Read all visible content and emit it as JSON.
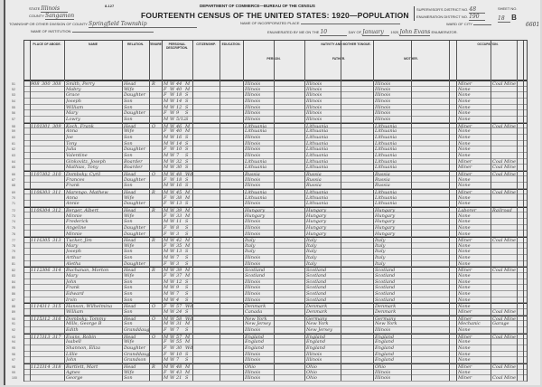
{
  "header": {
    "form_no": "8-127",
    "department": "DEPARTMENT OF COMMERCE—BUREAU OF THE CENSUS",
    "title": "FOURTEENTH CENSUS OF THE UNITED STATES: 1920—POPULATION",
    "state_label": "STATE",
    "state": "Illinois",
    "county_label": "COUNTY",
    "county": "Sangamon",
    "township_label": "TOWNSHIP OR OTHER DIVISION OF COUNTY",
    "township": "Springfield Township",
    "place_label": "NAME OF INCORPORATED PLACE",
    "place": "",
    "institution_label": "NAME OF INSTITUTION",
    "institution": "",
    "enumerated_label": "ENUMERATED BY ME ON THE",
    "day": "10",
    "day_label": "DAY OF",
    "month": "January",
    "year": "1920",
    "enumerator": "John Evans",
    "enumerator_label": "ENUMERATOR.",
    "supervisor_label": "SUPERVISOR'S DISTRICT NO.",
    "supervisor": "48",
    "ed_label": "ENUMERATION DISTRICT NO.",
    "ed": "190",
    "ward_label": "WARD OF CITY",
    "ward": "",
    "sheet_label": "SHEET NO.",
    "sheet": "18",
    "sheet_side": "B",
    "margin_note": "6601"
  },
  "columns": {
    "abode": "PLACE OF ABODE.",
    "name": "NAME",
    "relation": "RELATION.",
    "tenure": "TENURE.",
    "personal": "PERSONAL DESCRIPTION.",
    "citizenship": "CITIZENSHIP.",
    "education": "EDUCATION.",
    "nativity": "NATIVITY AND MOTHER TONGUE.",
    "person": "PERSON.",
    "father": "FATHER.",
    "mother": "MOTHER.",
    "occupation": "OCCUPATION."
  },
  "rows": [
    {
      "n": "51",
      "house": "908",
      "dw": "300",
      "fam": "308",
      "name": "Smith, Perry",
      "rel": "Head",
      "tenure": "R",
      "sex": "M",
      "race": "W",
      "age": "44",
      "ms": "M",
      "pob": "Illinois",
      "fpob": "Illinois",
      "mpob": "Illinois",
      "occ": "Miner",
      "ind": "Coal Mine",
      "new": true
    },
    {
      "n": "52",
      "name": "Mabry",
      "rel": "Wife",
      "sex": "F",
      "race": "W",
      "age": "40",
      "ms": "M",
      "pob": "Illinois",
      "fpob": "Illinois",
      "mpob": "Illinois",
      "occ": "None"
    },
    {
      "n": "53",
      "name": "Grace",
      "rel": "Daughter",
      "sex": "F",
      "race": "W",
      "age": "18",
      "ms": "S",
      "pob": "Illinois",
      "fpob": "Illinois",
      "mpob": "Illinois",
      "occ": "None"
    },
    {
      "n": "54",
      "name": "Joseph",
      "rel": "Son",
      "sex": "M",
      "race": "W",
      "age": "14",
      "ms": "S",
      "pob": "Illinois",
      "fpob": "Illinois",
      "mpob": "Illinois",
      "occ": "None"
    },
    {
      "n": "55",
      "name": "William",
      "rel": "Son",
      "sex": "M",
      "race": "W",
      "age": "12",
      "ms": "S",
      "pob": "Illinois",
      "fpob": "Illinois",
      "mpob": "Illinois",
      "occ": "None"
    },
    {
      "n": "56",
      "name": "Mary",
      "rel": "Daughter",
      "sex": "F",
      "race": "W",
      "age": "9",
      "ms": "S",
      "pob": "Illinois",
      "fpob": "Illinois",
      "mpob": "Illinois",
      "occ": "None"
    },
    {
      "n": "57",
      "name": "Lowry",
      "rel": "Son",
      "sex": "M",
      "race": "W",
      "age": "5/12",
      "ms": "S",
      "pob": "Illinois",
      "fpob": "Illinois",
      "mpob": "Illinois",
      "occ": "None"
    },
    {
      "n": "58",
      "house": "1101",
      "dw": "301",
      "fam": "309",
      "name": "Koch, Frank",
      "rel": "Head",
      "tenure": "O",
      "sex": "M",
      "race": "W",
      "age": "46",
      "ms": "M",
      "pob": "Lithuania",
      "fpob": "Lithuania",
      "mpob": "Lithuania",
      "occ": "Miner",
      "ind": "Coal Mine",
      "new": true
    },
    {
      "n": "59",
      "name": "Anna",
      "rel": "Wife",
      "sex": "F",
      "race": "W",
      "age": "40",
      "ms": "M",
      "pob": "Lithuania",
      "fpob": "Lithuania",
      "mpob": "Lithuania",
      "occ": "None"
    },
    {
      "n": "60",
      "name": "Joe",
      "rel": "Son",
      "sex": "M",
      "race": "W",
      "age": "16",
      "ms": "S",
      "pob": "Illinois",
      "fpob": "Lithuania",
      "mpob": "Lithuania",
      "occ": "None"
    },
    {
      "n": "61",
      "name": "Tony",
      "rel": "Son",
      "sex": "M",
      "race": "W",
      "age": "14",
      "ms": "S",
      "pob": "Illinois",
      "fpob": "Lithuania",
      "mpob": "Lithuania",
      "occ": "None"
    },
    {
      "n": "62",
      "name": "Julia",
      "rel": "Daughter",
      "sex": "F",
      "race": "W",
      "age": "10",
      "ms": "S",
      "pob": "Illinois",
      "fpob": "Lithuania",
      "mpob": "Lithuania",
      "occ": "None"
    },
    {
      "n": "63",
      "name": "Valentine",
      "rel": "Son",
      "sex": "M",
      "race": "W",
      "age": "7",
      "ms": "S",
      "pob": "Illinois",
      "fpob": "Lithuania",
      "mpob": "Lithuania",
      "occ": "None"
    },
    {
      "n": "64",
      "name": "Ginkovitz, Joseph",
      "rel": "Boarder",
      "sex": "M",
      "race": "W",
      "age": "32",
      "ms": "S",
      "pob": "Lithuania",
      "fpob": "Lithuania",
      "mpob": "Lithuania",
      "occ": "Miner",
      "ind": "Coal Mine"
    },
    {
      "n": "65",
      "name": "Mathias, Tony",
      "rel": "Boarder",
      "sex": "M",
      "race": "W",
      "age": "30",
      "ms": "S",
      "pob": "Lithuania",
      "fpob": "Lithuania",
      "mpob": "Lithuania",
      "occ": "Miner",
      "ind": "Coal Mine"
    },
    {
      "n": "66",
      "house": "1107",
      "dw": "302",
      "fam": "310",
      "name": "Dombsky, Cyril",
      "rel": "Head",
      "tenure": "O",
      "sex": "M",
      "race": "W",
      "age": "48",
      "ms": "Wd",
      "pob": "Russia",
      "fpob": "Russia",
      "mpob": "Russia",
      "occ": "Miner",
      "ind": "Coal Mine",
      "new": true
    },
    {
      "n": "67",
      "name": "Frances",
      "rel": "Daughter",
      "sex": "F",
      "race": "W",
      "age": "18",
      "ms": "S",
      "pob": "Illinois",
      "fpob": "Russia",
      "mpob": "Russia",
      "occ": "None"
    },
    {
      "n": "68",
      "name": "Frank",
      "rel": "Son",
      "sex": "M",
      "race": "W",
      "age": "16",
      "ms": "S",
      "pob": "Illinois",
      "fpob": "Russia",
      "mpob": "Russia",
      "occ": "None"
    },
    {
      "n": "69",
      "house": "1108",
      "dw": "303",
      "fam": "311",
      "name": "Marengo, Mathew",
      "rel": "Head",
      "tenure": "R",
      "sex": "M",
      "race": "W",
      "age": "45",
      "ms": "M",
      "pob": "Lithuania",
      "fpob": "Lithuania",
      "mpob": "Lithuania",
      "occ": "Miner",
      "ind": "Coal Mine",
      "new": true
    },
    {
      "n": "70",
      "name": "Anna",
      "rel": "Wife",
      "sex": "F",
      "race": "W",
      "age": "38",
      "ms": "M",
      "pob": "Lithuania",
      "fpob": "Lithuania",
      "mpob": "Lithuania",
      "occ": "None"
    },
    {
      "n": "71",
      "name": "Annie",
      "rel": "Daughter",
      "sex": "F",
      "race": "W",
      "age": "13",
      "ms": "S",
      "pob": "Illinois",
      "fpob": "Lithuania",
      "mpob": "Lithuania",
      "occ": "None"
    },
    {
      "n": "72",
      "house": "1109",
      "dw": "304",
      "fam": "312",
      "name": "Berger, Albert",
      "rel": "Head",
      "tenure": "R",
      "sex": "M",
      "race": "W",
      "age": "39",
      "ms": "M",
      "pob": "Hungary",
      "fpob": "Hungary",
      "mpob": "Hungary",
      "occ": "Laborer",
      "ind": "Railroad",
      "new": true
    },
    {
      "n": "73",
      "name": "Minnie",
      "rel": "Wife",
      "sex": "F",
      "race": "W",
      "age": "33",
      "ms": "M",
      "pob": "Hungary",
      "fpob": "Hungary",
      "mpob": "Hungary",
      "occ": "None"
    },
    {
      "n": "74",
      "name": "Frederick",
      "rel": "Son",
      "sex": "M",
      "race": "W",
      "age": "11",
      "ms": "S",
      "pob": "Illinois",
      "fpob": "Hungary",
      "mpob": "Hungary",
      "occ": "None"
    },
    {
      "n": "75",
      "name": "Angeline",
      "rel": "Daughter",
      "sex": "F",
      "race": "W",
      "age": "8",
      "ms": "S",
      "pob": "Illinois",
      "fpob": "Hungary",
      "mpob": "Hungary",
      "occ": "None"
    },
    {
      "n": "76",
      "name": "Minnie",
      "rel": "Daughter",
      "sex": "F",
      "race": "W",
      "age": "3",
      "ms": "S",
      "pob": "Illinois",
      "fpob": "Hungary",
      "mpob": "Hungary",
      "occ": "None"
    },
    {
      "n": "77",
      "house": "1110",
      "dw": "305",
      "fam": "313",
      "name": "Tucker, Jim",
      "rel": "Head",
      "tenure": "R",
      "sex": "M",
      "race": "W",
      "age": "42",
      "ms": "M",
      "pob": "Italy",
      "fpob": "Italy",
      "mpob": "Italy",
      "occ": "Miner",
      "ind": "Coal Mine",
      "new": true
    },
    {
      "n": "78",
      "name": "Mary",
      "rel": "Wife",
      "sex": "F",
      "race": "W",
      "age": "35",
      "ms": "M",
      "pob": "Italy",
      "fpob": "Italy",
      "mpob": "Italy",
      "occ": "None"
    },
    {
      "n": "79",
      "name": "Joseph",
      "rel": "Son",
      "sex": "M",
      "race": "W",
      "age": "13",
      "ms": "S",
      "pob": "Italy",
      "fpob": "Italy",
      "mpob": "Italy",
      "occ": "None"
    },
    {
      "n": "80",
      "name": "Arthur",
      "rel": "Son",
      "sex": "M",
      "race": "W",
      "age": "7",
      "ms": "S",
      "pob": "Illinois",
      "fpob": "Italy",
      "mpob": "Italy",
      "occ": "None"
    },
    {
      "n": "81",
      "name": "Aletha",
      "rel": "Daughter",
      "sex": "F",
      "race": "W",
      "age": "3",
      "ms": "S",
      "pob": "Illinois",
      "fpob": "Italy",
      "mpob": "Italy",
      "occ": "None"
    },
    {
      "n": "82",
      "house": "1112",
      "dw": "306",
      "fam": "314",
      "name": "Buchanan, Morton",
      "rel": "Head",
      "tenure": "R",
      "sex": "M",
      "race": "W",
      "age": "39",
      "ms": "M",
      "pob": "Scotland",
      "fpob": "Scotland",
      "mpob": "Scotland",
      "occ": "Miner",
      "ind": "Coal Mine",
      "new": true
    },
    {
      "n": "83",
      "name": "Mary",
      "rel": "Wife",
      "sex": "F",
      "race": "W",
      "age": "37",
      "ms": "M",
      "pob": "Scotland",
      "fpob": "Scotland",
      "mpob": "Scotland",
      "occ": "None"
    },
    {
      "n": "84",
      "name": "John",
      "rel": "Son",
      "sex": "M",
      "race": "W",
      "age": "12",
      "ms": "S",
      "pob": "Illinois",
      "fpob": "Scotland",
      "mpob": "Scotland",
      "occ": "None"
    },
    {
      "n": "85",
      "name": "Frank",
      "rel": "Son",
      "sex": "M",
      "race": "W",
      "age": "9",
      "ms": "S",
      "pob": "Illinois",
      "fpob": "Scotland",
      "mpob": "Scotland",
      "occ": "None"
    },
    {
      "n": "86",
      "name": "Edward",
      "rel": "Son",
      "sex": "M",
      "race": "W",
      "age": "7",
      "ms": "S",
      "pob": "Illinois",
      "fpob": "Scotland",
      "mpob": "Scotland",
      "occ": "None"
    },
    {
      "n": "87",
      "name": "Irvin",
      "rel": "Son",
      "sex": "M",
      "race": "W",
      "age": "4",
      "ms": "S",
      "pob": "Illinois",
      "fpob": "Scotland",
      "mpob": "Scotland",
      "occ": "None"
    },
    {
      "n": "88",
      "house": "1114",
      "dw": "311",
      "fam": "315",
      "name": "Hanson, Wilhelmina",
      "rel": "Head",
      "tenure": "O",
      "sex": "F",
      "race": "W",
      "age": "57",
      "ms": "Wd",
      "pob": "Denmark",
      "fpob": "Denmark",
      "mpob": "Denmark",
      "occ": "None",
      "new": true
    },
    {
      "n": "89",
      "name": "William",
      "rel": "Son",
      "sex": "M",
      "race": "W",
      "age": "24",
      "ms": "S",
      "pob": "Canada",
      "fpob": "Denmark",
      "mpob": "Denmark",
      "occ": "Miner",
      "ind": "Coal Mine"
    },
    {
      "n": "90",
      "house": "1115",
      "dw": "312",
      "fam": "316",
      "name": "Dombsky, Tommy",
      "rel": "Head",
      "tenure": "O",
      "sex": "M",
      "race": "W",
      "age": "58",
      "ms": "Wd",
      "pob": "New York",
      "fpob": "Germany",
      "mpob": "Germany",
      "occ": "Miner",
      "ind": "Coal Mine",
      "new": true
    },
    {
      "n": "91",
      "name": "Mills, George B",
      "rel": "Son",
      "sex": "M",
      "race": "W",
      "age": "31",
      "ms": "M",
      "pob": "New Jersey",
      "fpob": "New York",
      "mpob": "New York",
      "occ": "Mechanic",
      "ind": "Garage"
    },
    {
      "n": "92",
      "name": "Edith",
      "rel": "Granddaughter",
      "sex": "F",
      "race": "W",
      "age": "7",
      "ms": "S",
      "pob": "Illinois",
      "fpob": "New Jersey",
      "mpob": "Illinois",
      "occ": "None"
    },
    {
      "n": "93",
      "house": "1117",
      "dw": "313",
      "fam": "317",
      "name": "Evans, Robin",
      "rel": "Head",
      "tenure": "O",
      "sex": "M",
      "race": "W",
      "age": "57",
      "ms": "M",
      "pob": "England",
      "fpob": "England",
      "mpob": "England",
      "occ": "Miner",
      "ind": "Coal Mine",
      "new": true
    },
    {
      "n": "94",
      "name": "Isabell",
      "rel": "Wife",
      "sex": "F",
      "race": "W",
      "age": "55",
      "ms": "M",
      "pob": "England",
      "fpob": "England",
      "mpob": "England",
      "occ": "None"
    },
    {
      "n": "95",
      "name": "Shannon, Eliza",
      "rel": "Daughter",
      "sex": "F",
      "race": "W",
      "age": "30",
      "ms": "Wd",
      "pob": "England",
      "fpob": "England",
      "mpob": "England",
      "occ": "None"
    },
    {
      "n": "96",
      "name": "Lillie",
      "rel": "Granddaughter",
      "sex": "F",
      "race": "W",
      "age": "10",
      "ms": "S",
      "pob": "Illinois",
      "fpob": "Illinois",
      "mpob": "England",
      "occ": "None"
    },
    {
      "n": "97",
      "name": "John",
      "rel": "Grandson",
      "sex": "M",
      "race": "W",
      "age": "7",
      "ms": "S",
      "pob": "Illinois",
      "fpob": "Illinois",
      "mpob": "England",
      "occ": "None"
    },
    {
      "n": "98",
      "house": "1121",
      "dw": "314",
      "fam": "318",
      "name": "Bartlett, Mart",
      "rel": "Head",
      "tenure": "R",
      "sex": "M",
      "race": "W",
      "age": "48",
      "ms": "M",
      "pob": "Ohio",
      "fpob": "Ohio",
      "mpob": "Ohio",
      "occ": "Miner",
      "ind": "Coal Mine",
      "new": true
    },
    {
      "n": "99",
      "name": "Agnes",
      "rel": "Wife",
      "sex": "F",
      "race": "W",
      "age": "43",
      "ms": "M",
      "pob": "Illinois",
      "fpob": "Ohio",
      "mpob": "Illinois",
      "occ": "None"
    },
    {
      "n": "100",
      "name": "George",
      "rel": "Son",
      "sex": "M",
      "race": "W",
      "age": "21",
      "ms": "S",
      "pob": "Illinois",
      "fpob": "Ohio",
      "mpob": "Illinois",
      "occ": "Miner",
      "ind": "Coal Mine"
    }
  ]
}
